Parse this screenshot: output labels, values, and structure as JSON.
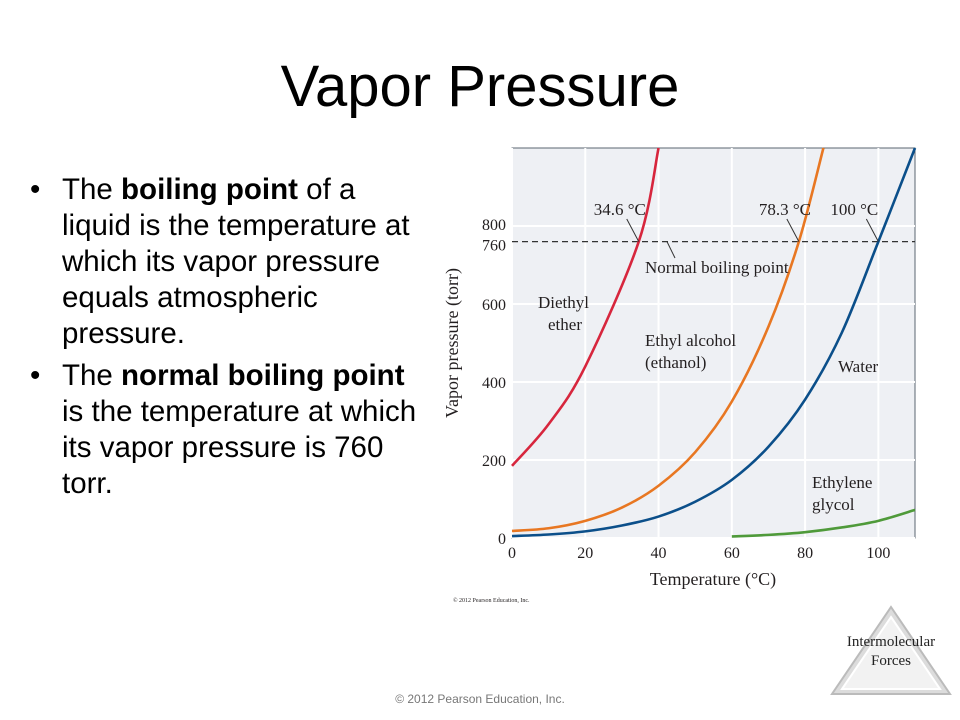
{
  "slide": {
    "title": "Vapor Pressure",
    "bullets": [
      {
        "before": "The ",
        "bold": "boiling point",
        "after": " of a liquid is the temperature at which its vapor pressure equals atmospheric pressure."
      },
      {
        "before": "The ",
        "bold": "normal boiling point",
        "after": " is the temperature at which its vapor pressure is 760 torr."
      }
    ],
    "footer": "© 2012 Pearson Education, Inc.",
    "badge": {
      "line1": "Intermolecular",
      "line2": "Forces"
    }
  },
  "chart_data": {
    "type": "line",
    "xlabel": "Temperature (°C)",
    "ylabel": "Vapor pressure (torr)",
    "xlim": [
      0,
      110
    ],
    "ylim": [
      0,
      1000
    ],
    "xticks": [
      0,
      20,
      40,
      60,
      80,
      100
    ],
    "yticks": [
      0,
      200,
      400,
      600,
      760,
      800
    ],
    "credit": "© 2012 Pearson Education, Inc.",
    "reference_line": {
      "y": 760,
      "style": "dashed",
      "label": "Normal boiling point"
    },
    "series": [
      {
        "name": "Diethyl ether",
        "color": "#d7263d",
        "x": [
          0,
          10,
          20,
          34.6,
          40
        ],
        "y": [
          185,
          292,
          440,
          760,
          1000
        ]
      },
      {
        "name": "Ethyl alcohol (ethanol)",
        "color": "#e87722",
        "x": [
          0,
          10,
          20,
          30,
          40,
          50,
          60,
          70,
          78.3,
          85
        ],
        "y": [
          18,
          25,
          44,
          78,
          134,
          220,
          350,
          542,
          760,
          1000
        ]
      },
      {
        "name": "Water",
        "color": "#0b4f8a",
        "x": [
          0,
          10,
          20,
          30,
          40,
          50,
          60,
          70,
          80,
          90,
          100,
          110
        ],
        "y": [
          5,
          9,
          17,
          32,
          55,
          93,
          149,
          234,
          355,
          526,
          760,
          1000
        ]
      },
      {
        "name": "Ethylene glycol",
        "color": "#4f9a3a",
        "x": [
          60,
          70,
          80,
          90,
          100,
          110
        ],
        "y": [
          4,
          8,
          15,
          27,
          44,
          72
        ]
      }
    ],
    "annotations": [
      {
        "text": "34.6 °C",
        "series": 0
      },
      {
        "text": "78.3 °C",
        "series": 1
      },
      {
        "text": "100 °C",
        "series": 2
      }
    ],
    "series_labels": [
      {
        "lines": [
          "Diethyl",
          "ether"
        ]
      },
      {
        "lines": [
          "Ethyl alcohol",
          "(ethanol)"
        ]
      },
      {
        "lines": [
          "Water"
        ]
      },
      {
        "lines": [
          "Ethylene",
          "glycol"
        ]
      }
    ]
  }
}
